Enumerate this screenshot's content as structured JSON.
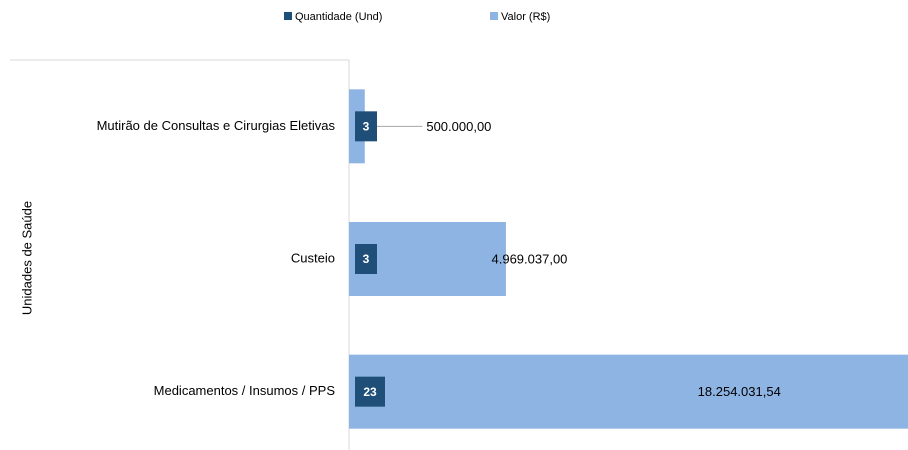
{
  "chart_data": {
    "type": "bar",
    "orientation": "horizontal",
    "y_axis_label": "Unidades de Saúde",
    "categories": [
      "Mutirão de Consultas e Cirurgias Eletivas",
      "Custeio",
      "Medicamentos / Insumos / PPS"
    ],
    "series": [
      {
        "name": "Quantidade (Und)",
        "color": "#1f4e79",
        "values": [
          3,
          3,
          23
        ]
      },
      {
        "name": "Valor (R$)",
        "color": "#8eb4e3",
        "values": [
          500000,
          4969037,
          18254031.54
        ],
        "value_labels": [
          "500.000,00",
          "4.969.037,00",
          "18.254.031,54"
        ]
      }
    ],
    "xlim": [
      0,
      17700000
    ]
  }
}
